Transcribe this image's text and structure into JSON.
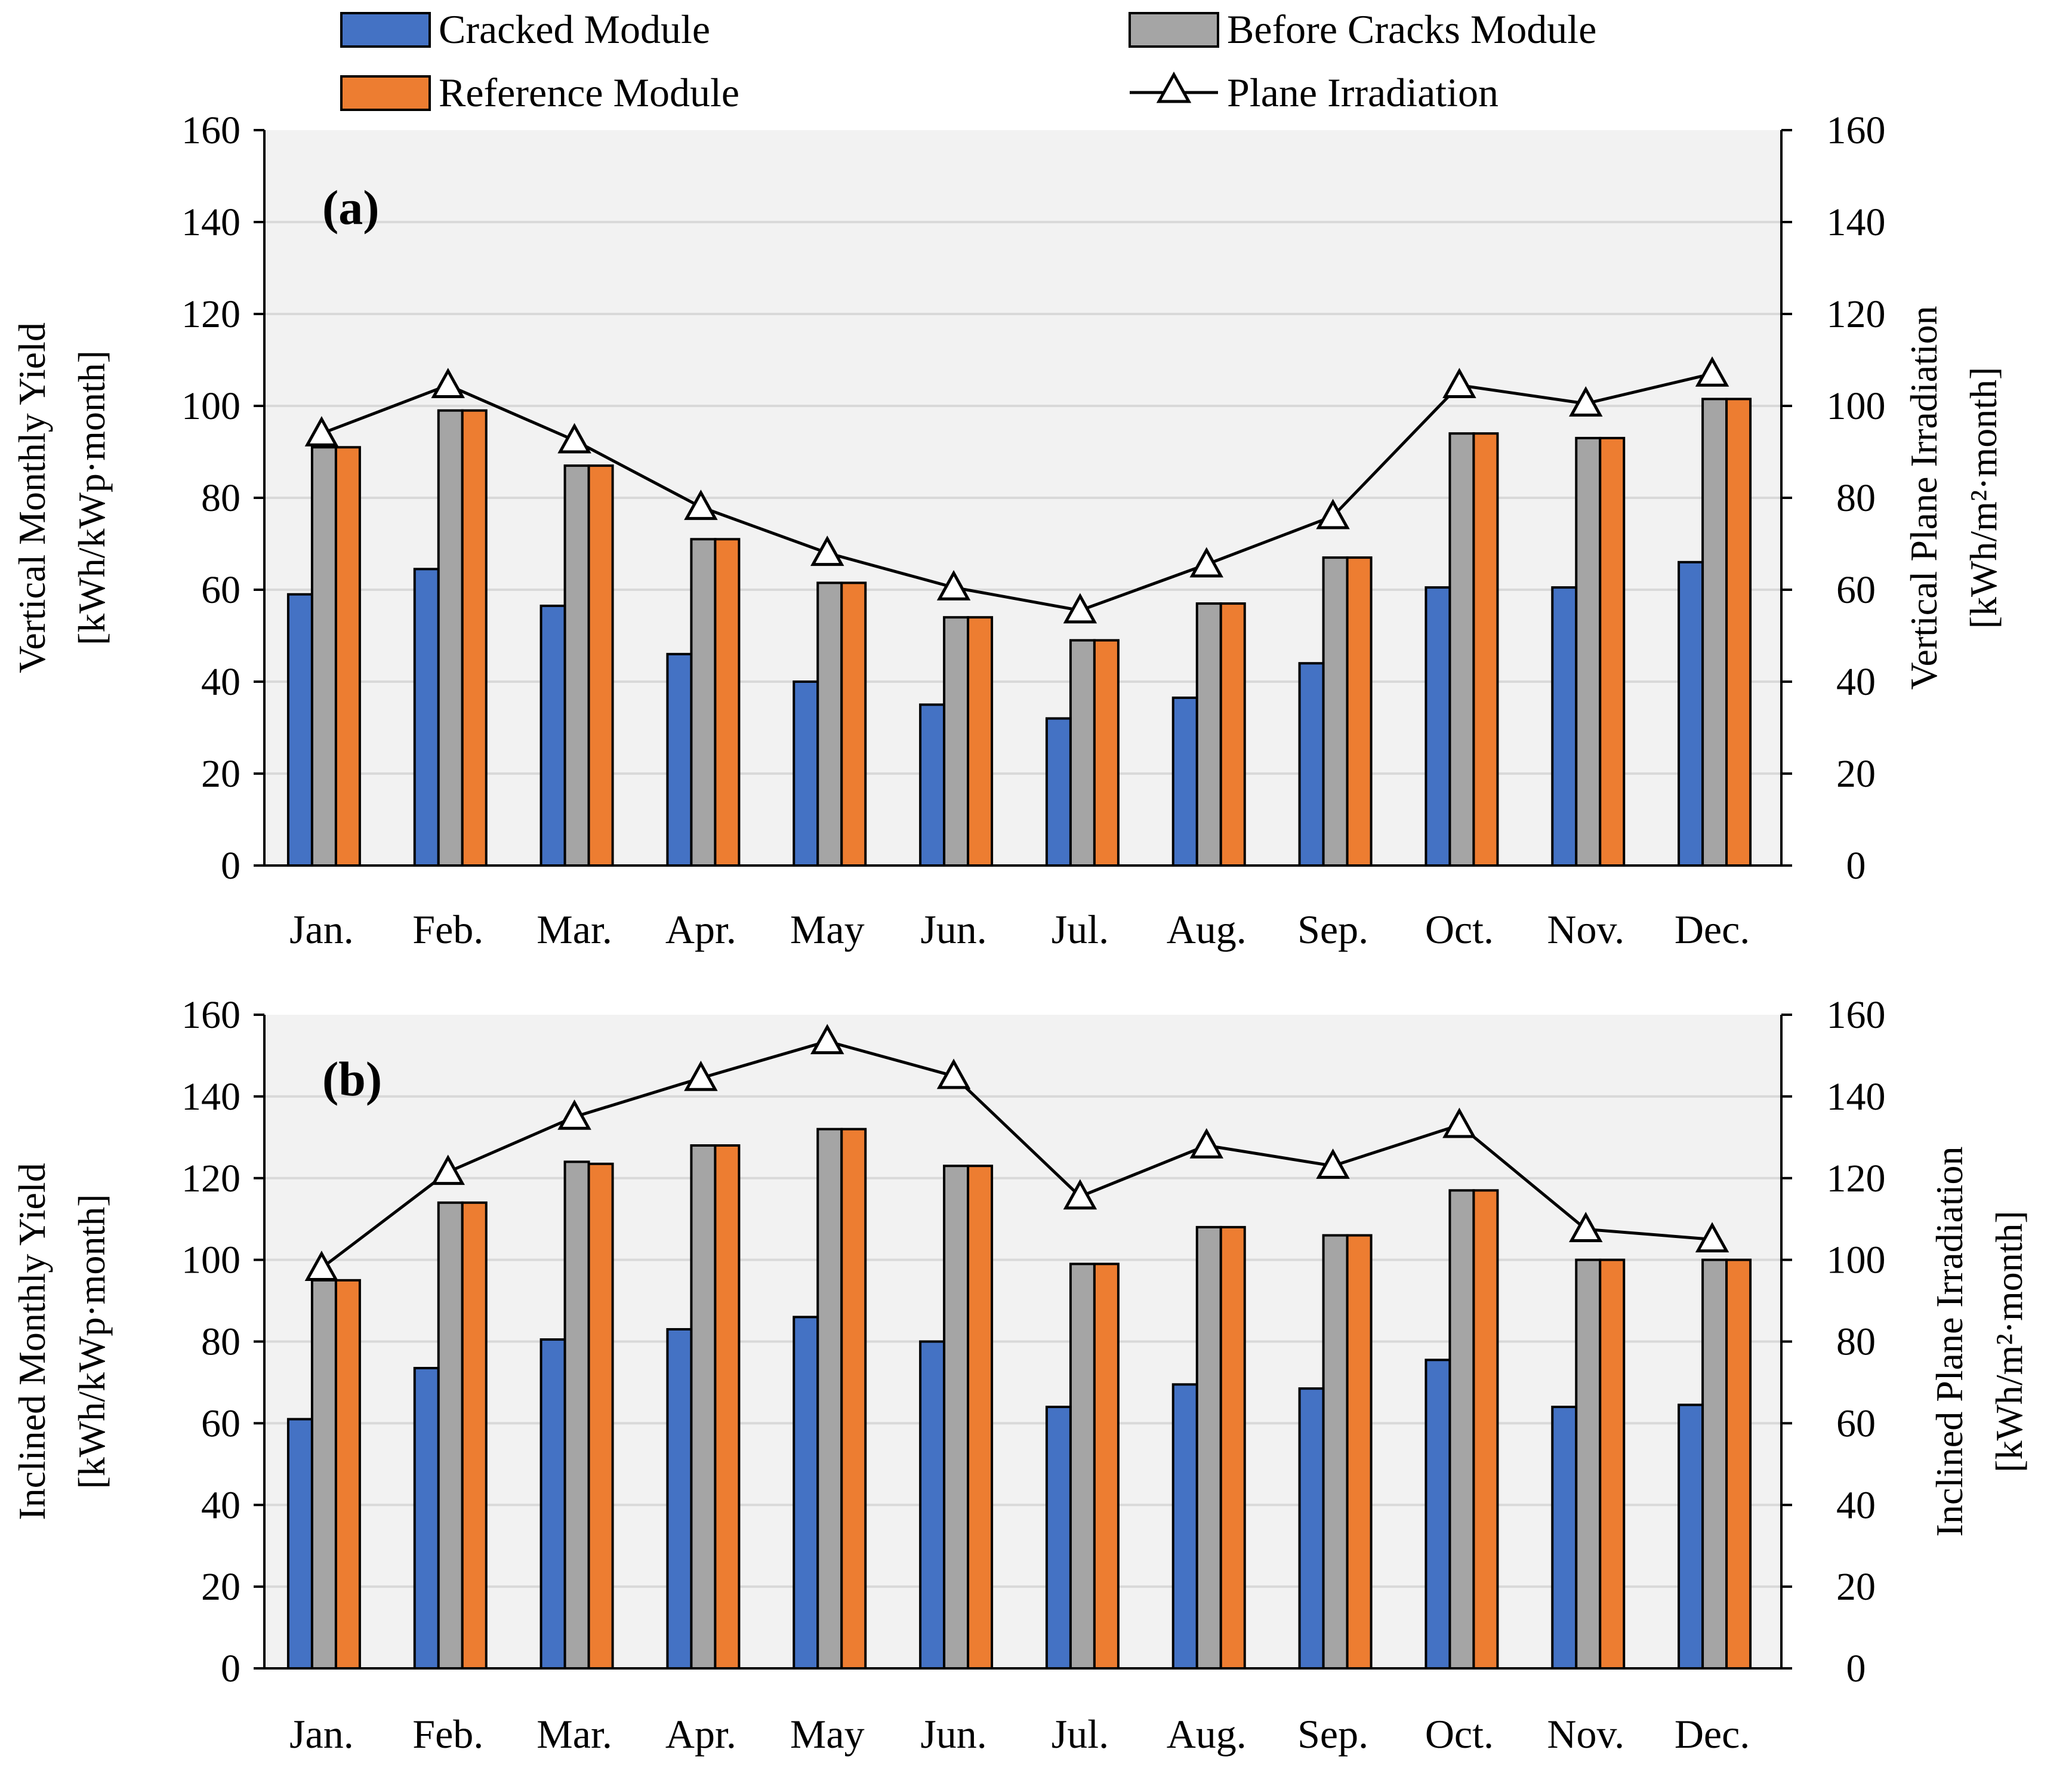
{
  "legend": {
    "cracked": "Cracked Module",
    "before": "Before Cracks Module",
    "reference": "Reference Module",
    "irradiation": "Plane Irradiation"
  },
  "colors": {
    "cracked": "#4472C4",
    "before": "#A5A5A5",
    "reference": "#ED7D31",
    "plot_bg": "#F2F2F2",
    "grid": "#D9D9D9",
    "line": "#000000"
  },
  "chart_data": [
    {
      "type": "bar",
      "panel_label": "(a)",
      "categories": [
        "Jan.",
        "Feb.",
        "Mar.",
        "Apr.",
        "May",
        "Jun.",
        "Jul.",
        "Aug.",
        "Sep.",
        "Oct.",
        "Nov.",
        "Dec."
      ],
      "y_left": {
        "label_lines": [
          "Vertical Monthly Yield",
          "[kWh/kWp·month]"
        ],
        "lim": [
          0,
          160
        ],
        "ticks": [
          "0",
          "20",
          "40",
          "60",
          "80",
          "100",
          "120",
          "140",
          "160"
        ]
      },
      "y_right": {
        "label_lines": [
          "Vertical Plane Irradiation",
          "[kWh/m²·month]"
        ],
        "lim": [
          0,
          160
        ],
        "ticks": [
          "0",
          "20",
          "40",
          "60",
          "80",
          "100",
          "120",
          "140",
          "160"
        ]
      },
      "grid": true,
      "legend_position": "top",
      "series": [
        {
          "name": "Cracked Module",
          "axis": "left",
          "values": [
            59,
            64.5,
            56.5,
            46,
            40,
            35,
            32,
            36.5,
            44,
            60.5,
            60.5,
            66
          ]
        },
        {
          "name": "Before Cracks Module",
          "axis": "left",
          "values": [
            91,
            99,
            87,
            71,
            61.5,
            54,
            49,
            57,
            67,
            94,
            93,
            101.5
          ]
        },
        {
          "name": "Reference Module",
          "axis": "left",
          "values": [
            91,
            99,
            87,
            71,
            61.5,
            54,
            49,
            57,
            67,
            94,
            93,
            101.5
          ]
        },
        {
          "name": "Plane Irradiation",
          "axis": "right",
          "type": "line",
          "values": [
            94,
            104.5,
            92.5,
            78,
            68,
            60.5,
            55.5,
            65.5,
            76,
            104.5,
            100.5,
            107
          ]
        }
      ]
    },
    {
      "type": "bar",
      "panel_label": "(b)",
      "categories": [
        "Jan.",
        "Feb.",
        "Mar.",
        "Apr.",
        "May",
        "Jun.",
        "Jul.",
        "Aug.",
        "Sep.",
        "Oct.",
        "Nov.",
        "Dec."
      ],
      "y_left": {
        "label_lines": [
          "Inclined Monthly Yield",
          "[kWh/kWp·month]"
        ],
        "lim": [
          0,
          160
        ],
        "ticks": [
          "0",
          "20",
          "40",
          "60",
          "80",
          "100",
          "120",
          "140",
          "160"
        ]
      },
      "y_right": {
        "label_lines": [
          "Inclined Plane Irradiation",
          "[kWh/m²·month]"
        ],
        "lim": [
          0,
          160
        ],
        "ticks": [
          "0",
          "20",
          "40",
          "60",
          "80",
          "100",
          "120",
          "140",
          "160"
        ]
      },
      "grid": true,
      "legend_position": "top",
      "series": [
        {
          "name": "Cracked Module",
          "axis": "left",
          "values": [
            61,
            73.5,
            80.5,
            83,
            86,
            80,
            64,
            69.5,
            68.5,
            75.5,
            64,
            64.5
          ]
        },
        {
          "name": "Before Cracks Module",
          "axis": "left",
          "values": [
            95,
            114,
            124,
            128,
            132,
            123,
            99,
            108,
            106,
            117,
            100,
            100
          ]
        },
        {
          "name": "Reference Module",
          "axis": "left",
          "values": [
            95,
            114,
            123.5,
            128,
            132,
            123,
            99,
            108,
            106,
            117,
            100,
            100
          ]
        },
        {
          "name": "Plane Irradiation",
          "axis": "right",
          "type": "line",
          "values": [
            98,
            121.5,
            135,
            144.5,
            153.5,
            145,
            115.5,
            128,
            123,
            133,
            107.5,
            105
          ]
        }
      ]
    }
  ]
}
